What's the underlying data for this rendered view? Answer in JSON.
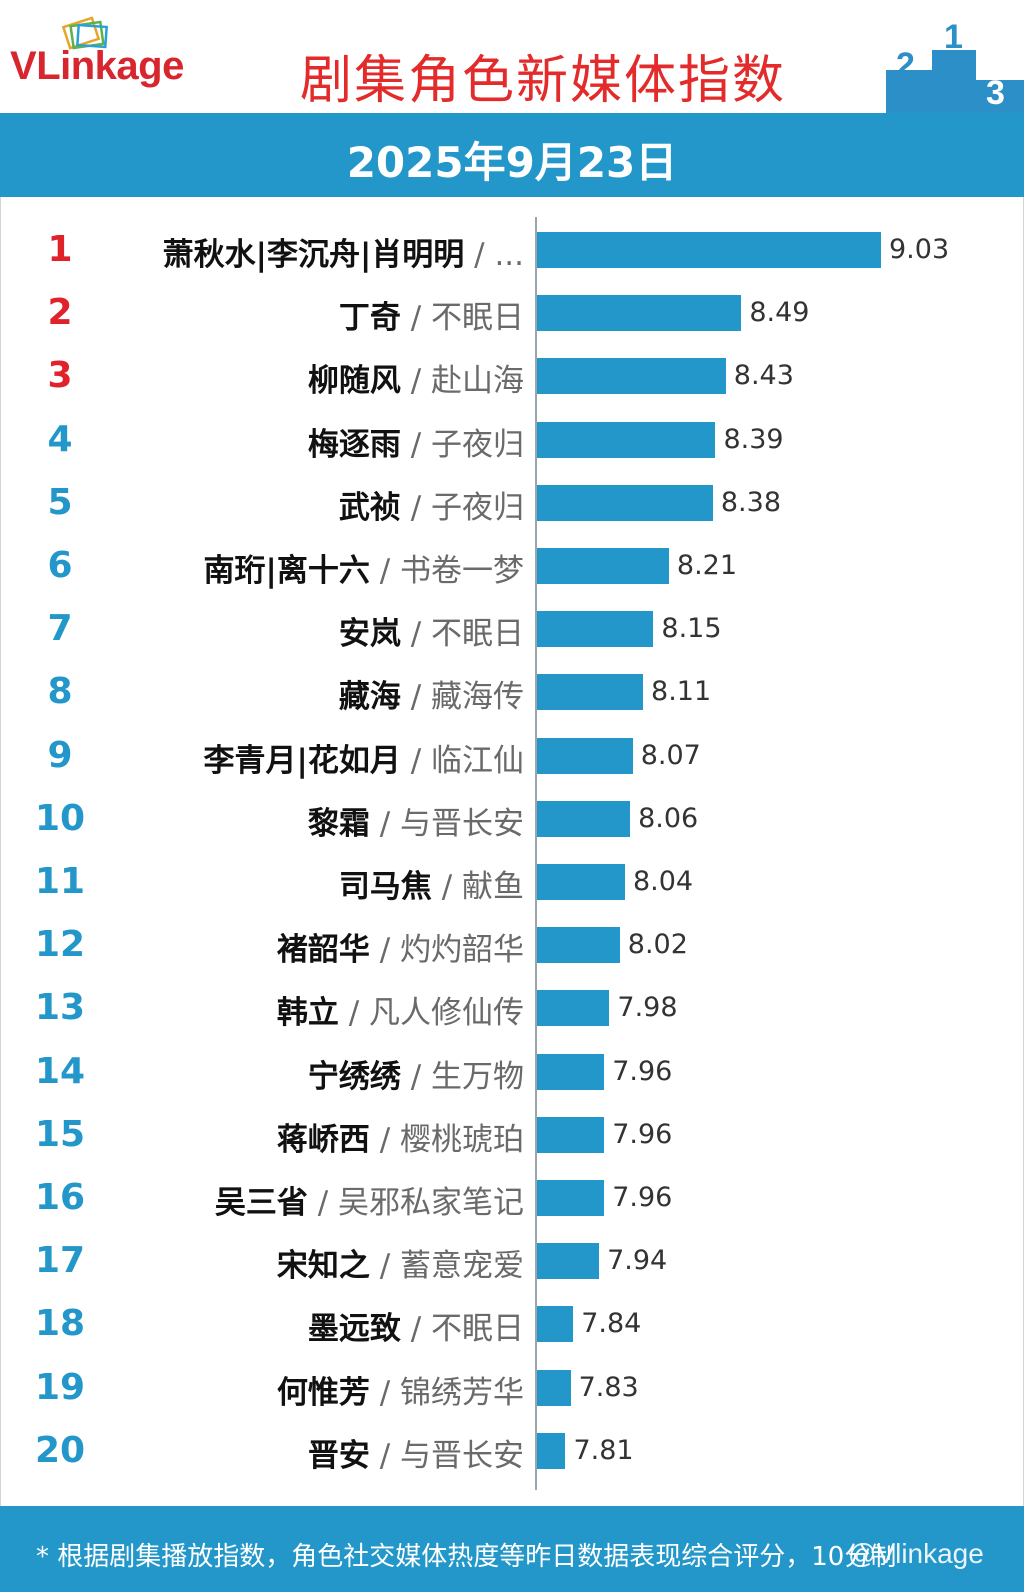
{
  "brand": {
    "logo_text_v": "V",
    "logo_text_rest": "Linkage"
  },
  "header": {
    "title": "剧集角色新媒体指数"
  },
  "date": "2025年9月23日",
  "colors": {
    "accent_blue": "#2397c9",
    "title_red": "#e22b2a",
    "rank_top_red": "#e0222b",
    "bar_blue": "#2397c9"
  },
  "chart_data": {
    "type": "bar",
    "orientation": "horizontal",
    "title": "剧集角色新媒体指数",
    "ranks": [
      "1",
      "2",
      "3",
      "4",
      "5",
      "6",
      "7",
      "8",
      "9",
      "10",
      "11",
      "12",
      "13",
      "14",
      "15",
      "16",
      "17",
      "18",
      "19",
      "20"
    ],
    "names": [
      "萧秋水|李沉舟|肖明明",
      "丁奇",
      "柳随风",
      "梅逐雨",
      "武祯",
      "南珩|离十六",
      "安岚",
      "藏海",
      "李青月|花如月",
      "黎霜",
      "司马焦",
      "褚韶华",
      "韩立",
      "宁绣绣",
      "蒋峤西",
      "吴三省",
      "宋知之",
      "墨远致",
      "何惟芳",
      "晋安"
    ],
    "shows": [
      "...",
      "不眠日",
      "赴山海",
      "子夜归",
      "子夜归",
      "书卷一梦",
      "不眠日",
      "藏海传",
      "临江仙",
      "与晋长安",
      "献鱼",
      "灼灼韶华",
      "凡人修仙传",
      "生万物",
      "樱桃琥珀",
      "吴邪私家笔记",
      "蓄意宠爱",
      "不眠日",
      "锦绣芳华",
      "与晋长安"
    ],
    "separator": " / ",
    "values": [
      9.03,
      8.49,
      8.43,
      8.39,
      8.38,
      8.21,
      8.15,
      8.11,
      8.07,
      8.06,
      8.04,
      8.02,
      7.98,
      7.96,
      7.96,
      7.96,
      7.94,
      7.84,
      7.83,
      7.81
    ],
    "value_labels": [
      "9.03",
      "8.49",
      "8.43",
      "8.39",
      "8.38",
      "8.21",
      "8.15",
      "8.11",
      "8.07",
      "8.06",
      "8.04",
      "8.02",
      "7.98",
      "7.96",
      "7.96",
      "7.96",
      "7.94",
      "7.84",
      "7.83",
      "7.81"
    ],
    "xlim": [
      7.7,
      9.03
    ],
    "grid": false,
    "legend": "none"
  },
  "footer": {
    "note": "* 根据剧集播放指数，角色社交媒体热度等昨日数据表现综合评分，10分制",
    "watermark": "@Vlinkage"
  }
}
